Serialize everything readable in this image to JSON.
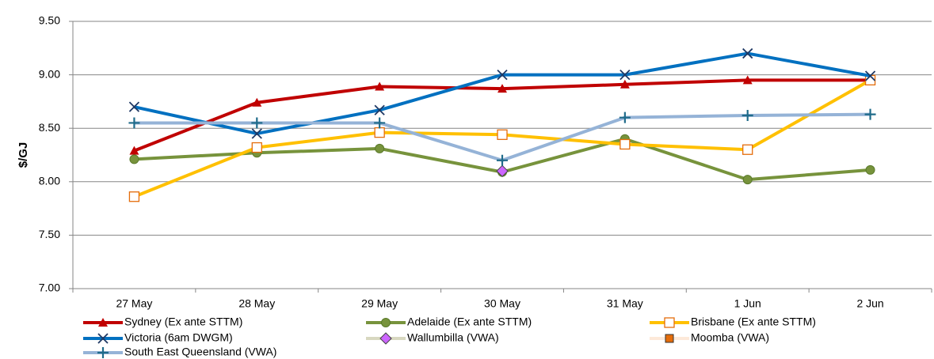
{
  "chart_data": {
    "type": "line",
    "y_label": "$/GJ",
    "categories": [
      "27 May",
      "28 May",
      "29 May",
      "30 May",
      "31 May",
      "1 Jun",
      "2 Jun"
    ],
    "ylim": [
      7.0,
      9.5
    ],
    "yticks": [
      {
        "value": 7.0,
        "label": "7.00"
      },
      {
        "value": 7.5,
        "label": "7.50"
      },
      {
        "value": 8.0,
        "label": "8.00"
      },
      {
        "value": 8.5,
        "label": "8.50"
      },
      {
        "value": 9.0,
        "label": "9.00"
      },
      {
        "value": 9.5,
        "label": "9.50"
      }
    ],
    "grid": true,
    "legend": "bottom",
    "series": [
      {
        "name": "Sydney (Ex ante STTM)",
        "color": "#c00000",
        "marker": "triangle",
        "marker_color": "#c00000",
        "values": [
          8.29,
          8.74,
          8.89,
          8.87,
          8.91,
          8.95,
          8.95
        ]
      },
      {
        "name": "Adelaide (Ex ante STTM)",
        "color": "#77933c",
        "marker": "circle",
        "marker_color": "#77933c",
        "values": [
          8.21,
          8.27,
          8.31,
          8.09,
          8.4,
          8.02,
          8.11
        ]
      },
      {
        "name": "Brisbane (Ex ante STTM)",
        "color": "#ffc000",
        "marker": "open-square",
        "marker_color": "#e46c0a",
        "values": [
          7.86,
          8.32,
          8.46,
          8.44,
          8.35,
          8.3,
          8.95
        ]
      },
      {
        "name": "Victoria (6am DWGM)",
        "color": "#0070c0",
        "marker": "x",
        "marker_color": "#1f3864",
        "values": [
          8.7,
          8.45,
          8.67,
          9.0,
          9.0,
          9.2,
          8.99
        ]
      },
      {
        "name": "Wallumbilla (VWA)",
        "color": "#d8d8c0",
        "marker": "diamond",
        "marker_color": "#cc66ff",
        "values": [
          null,
          null,
          null,
          8.1,
          null,
          null,
          null
        ]
      },
      {
        "name": "Moomba (VWA)",
        "color": "#fde9d9",
        "marker": "square",
        "marker_color": "#e46c0a",
        "values": [
          null,
          null,
          null,
          null,
          null,
          null,
          null
        ]
      },
      {
        "name": "South East Queensland (VWA)",
        "color": "#95b3d7",
        "marker": "plus",
        "marker_color": "#1f6b8a",
        "values": [
          8.55,
          8.55,
          8.55,
          8.2,
          8.6,
          8.62,
          8.63
        ]
      }
    ]
  }
}
